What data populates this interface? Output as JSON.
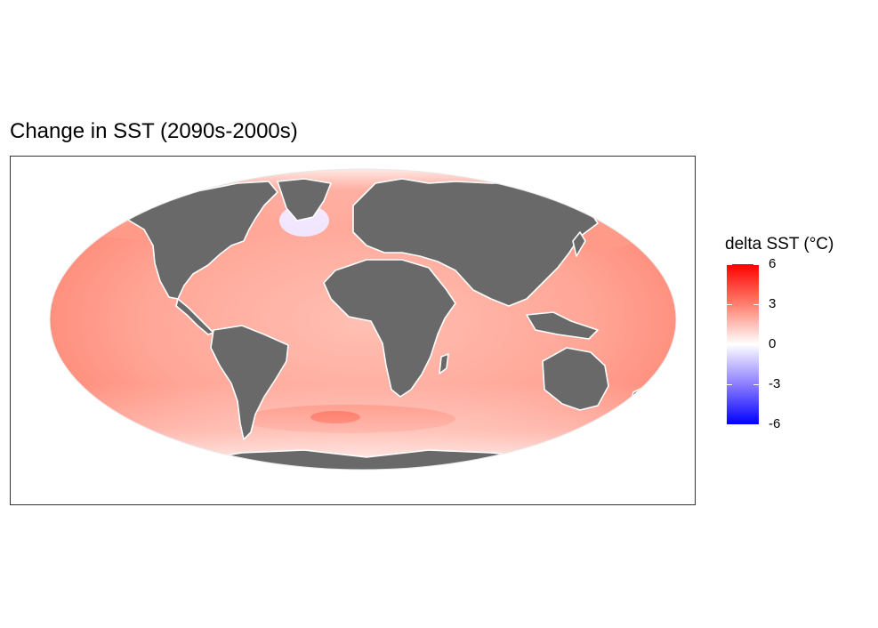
{
  "plot": {
    "title": "Change in SST (2090s-2000s)"
  },
  "legend": {
    "title": "delta SST (°C)",
    "breaks": [
      {
        "label": "6",
        "value": 6
      },
      {
        "label": "3",
        "value": 3
      },
      {
        "label": "0",
        "value": 0
      },
      {
        "label": "-3",
        "value": -3
      },
      {
        "label": "-6",
        "value": -6
      }
    ],
    "limits": [
      -6,
      6
    ],
    "colors": {
      "low": "#0000ff",
      "mid": "#ffffff",
      "high": "#ff0000"
    }
  },
  "map": {
    "projection": "Robinson",
    "land_color": "#696969",
    "ocean_base_color": "#ffb3a6",
    "coastline_color": "#ffffff",
    "panel_border_color": "#333333"
  }
}
